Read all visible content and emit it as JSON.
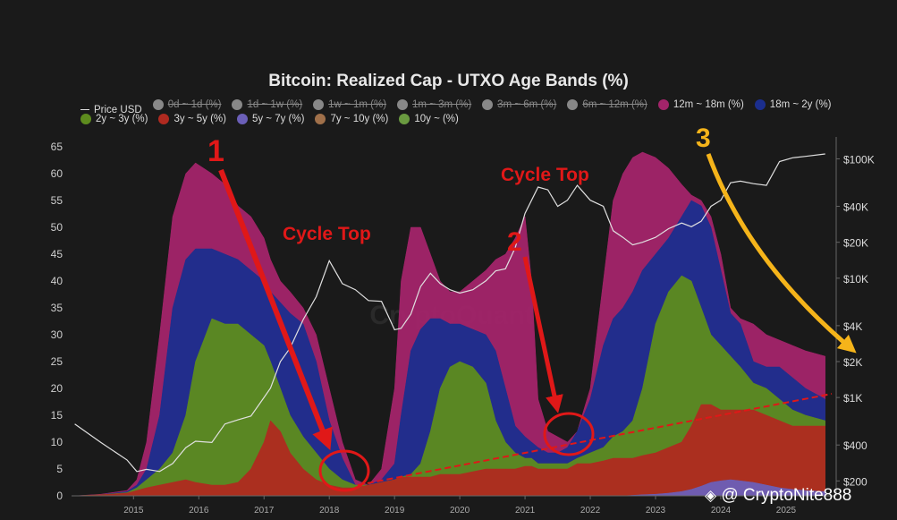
{
  "chart_data": {
    "type": "area",
    "title": "Bitcoin: Realized Cap - UTXO Age Bands (%)",
    "xlabel": "",
    "ylabel": "",
    "x_ticks": [
      "2015",
      "2016",
      "2017",
      "2018",
      "2019",
      "2020",
      "2021",
      "2022",
      "2023",
      "2024",
      "2025"
    ],
    "y_ticks": [
      0,
      5,
      10,
      15,
      20,
      25,
      30,
      35,
      40,
      45,
      50,
      55,
      60,
      65
    ],
    "ylim": [
      0,
      66
    ],
    "y2_ticks": [
      "$200",
      "$400",
      "$1K",
      "$2K",
      "$4K",
      "$10K",
      "$20K",
      "$40K",
      "$100K"
    ],
    "y2_scale": "log",
    "stack_order": [
      "10y ~ (%)",
      "7y ~ 10y (%)",
      "5y ~ 7y (%)",
      "3y ~ 5y (%)",
      "2y ~ 3y (%)",
      "18m ~ 2y (%)",
      "12m ~ 18m (%)"
    ],
    "x": [
      2014.1,
      2014.5,
      2014.9,
      2015.05,
      2015.2,
      2015.4,
      2015.6,
      2015.8,
      2015.95,
      2016.2,
      2016.4,
      2016.6,
      2016.8,
      2017.0,
      2017.1,
      2017.25,
      2017.4,
      2017.6,
      2017.8,
      2018.0,
      2018.2,
      2018.4,
      2018.6,
      2018.8,
      2019.0,
      2019.1,
      2019.25,
      2019.4,
      2019.55,
      2019.7,
      2019.85,
      2020.0,
      2020.2,
      2020.4,
      2020.55,
      2020.7,
      2020.85,
      2021.0,
      2021.1,
      2021.2,
      2021.35,
      2021.5,
      2021.65,
      2021.8,
      2022.0,
      2022.2,
      2022.35,
      2022.5,
      2022.65,
      2022.8,
      2023.0,
      2023.2,
      2023.4,
      2023.55,
      2023.7,
      2023.85,
      2024.0,
      2024.15,
      2024.3,
      2024.5,
      2024.7,
      2024.9,
      2025.1,
      2025.3,
      2025.6
    ],
    "series": [
      {
        "name": "12m ~ 18m (%)",
        "color": "#a3246a",
        "values": [
          0,
          0.3,
          1,
          3,
          10,
          30,
          52,
          60,
          62,
          60,
          58,
          54,
          52,
          48,
          44,
          40,
          38,
          35,
          30,
          20,
          10,
          3,
          2,
          5,
          20,
          40,
          50,
          50,
          45,
          40,
          38,
          38,
          40,
          42,
          44,
          45,
          48,
          52,
          40,
          18,
          12,
          11,
          10,
          12,
          20,
          40,
          55,
          60,
          63,
          64,
          63,
          61,
          58,
          56,
          55,
          52,
          45,
          35,
          33,
          32,
          30,
          29,
          28,
          27,
          26
        ]
      },
      {
        "name": "18m ~ 2y (%)",
        "color": "#1b2e8e",
        "values": [
          0,
          0.2,
          0.8,
          2,
          5,
          15,
          35,
          44,
          46,
          46,
          45,
          44,
          42,
          40,
          38,
          36,
          34,
          32,
          25,
          14,
          7,
          2,
          2,
          3,
          6,
          15,
          27,
          31,
          33,
          33,
          32,
          32,
          31,
          30,
          27,
          20,
          13,
          11,
          10,
          9,
          8,
          8,
          9,
          12,
          18,
          28,
          33,
          35,
          38,
          42,
          45,
          48,
          52,
          55,
          54,
          50,
          42,
          34,
          32,
          25,
          24,
          24,
          22,
          20,
          18
        ]
      },
      {
        "name": "2y ~ 3y (%)",
        "color": "#5e8c1e",
        "values": [
          0,
          0.2,
          0.6,
          1.5,
          3,
          5,
          8,
          15,
          25,
          33,
          32,
          32,
          30,
          28,
          25,
          20,
          15,
          11,
          8,
          5,
          3,
          2,
          2,
          2.5,
          3,
          3.5,
          4,
          6,
          12,
          20,
          24,
          25,
          24,
          21,
          14,
          10,
          8,
          7,
          7,
          6,
          6,
          6,
          6,
          7,
          8,
          9,
          11,
          12,
          14,
          20,
          32,
          38,
          41,
          40,
          35,
          30,
          28,
          26,
          24,
          21,
          20,
          18,
          16,
          15,
          14
        ]
      },
      {
        "name": "3y ~ 5y (%)",
        "color": "#b02a20",
        "values": [
          0,
          0.2,
          0.5,
          1,
          1.5,
          2,
          2.5,
          3,
          2.5,
          2,
          2,
          2.5,
          5,
          10,
          14,
          12,
          8,
          5,
          3,
          2,
          1.5,
          1.5,
          2,
          2.5,
          3,
          3.5,
          3.5,
          3.5,
          3.5,
          4,
          4,
          4,
          4.5,
          5,
          5,
          5,
          5,
          5.5,
          5.5,
          5,
          5,
          5,
          5,
          6,
          6,
          6.5,
          7,
          7,
          7,
          7.5,
          8,
          9,
          10,
          13,
          17,
          17,
          16,
          16,
          16,
          16,
          15,
          14,
          13,
          13,
          13
        ]
      },
      {
        "name": "5y ~ 7y (%)",
        "color": "#6b5fb8",
        "values": [
          0,
          0,
          0,
          0,
          0,
          0,
          0,
          0,
          0,
          0,
          0,
          0,
          0,
          0,
          0,
          0,
          0,
          0,
          0,
          0,
          0,
          0,
          0,
          0,
          0,
          0,
          0,
          0,
          0,
          0,
          0,
          0,
          0,
          0,
          0,
          0,
          0,
          0,
          0,
          0,
          0,
          0,
          0,
          0,
          0,
          0,
          0,
          0,
          0.1,
          0.2,
          0.3,
          0.5,
          0.8,
          1.2,
          1.8,
          2.5,
          2.8,
          3,
          2.8,
          2.5,
          2,
          1.5,
          1.2,
          1,
          0.8
        ]
      },
      {
        "name": "Price USD",
        "color": "#e0e0e0",
        "values": [
          600,
          420,
          300,
          240,
          250,
          240,
          280,
          380,
          430,
          420,
          600,
          650,
          700,
          1000,
          1200,
          2000,
          2600,
          4500,
          7000,
          14000,
          9000,
          8000,
          6500,
          6400,
          3700,
          3800,
          5000,
          8500,
          11000,
          9000,
          8000,
          7500,
          8000,
          9500,
          11500,
          12000,
          18000,
          35000,
          45000,
          58000,
          55000,
          40000,
          45000,
          60000,
          45000,
          40000,
          25000,
          22000,
          19000,
          20000,
          22000,
          26000,
          29000,
          27000,
          30000,
          40000,
          45000,
          63000,
          65000,
          62000,
          60000,
          95000,
          102000,
          105000,
          110000
        ]
      }
    ],
    "annotations": {
      "label_1": "1",
      "label_2": "2",
      "label_3": "3",
      "cycle_top_1": "Cycle Top",
      "cycle_top_2": "Cycle Top"
    },
    "grid": false,
    "legend_position": "top"
  },
  "legend": {
    "items": [
      {
        "label": "Price USD",
        "color": "#dddddd",
        "type": "line",
        "enabled": true
      },
      {
        "label": "0d ~ 1d (%)",
        "color": "#888888",
        "type": "dot",
        "enabled": false
      },
      {
        "label": "1d ~ 1w (%)",
        "color": "#888888",
        "type": "dot",
        "enabled": false
      },
      {
        "label": "1w ~ 1m (%)",
        "color": "#888888",
        "type": "dot",
        "enabled": false
      },
      {
        "label": "1m ~ 3m (%)",
        "color": "#888888",
        "type": "dot",
        "enabled": false
      },
      {
        "label": "3m ~ 6m (%)",
        "color": "#888888",
        "type": "dot",
        "enabled": false
      },
      {
        "label": "6m ~ 12m (%)",
        "color": "#888888",
        "type": "dot",
        "enabled": false
      },
      {
        "label": "12m ~ 18m (%)",
        "color": "#a3246a",
        "type": "dot",
        "enabled": true
      },
      {
        "label": "18m ~ 2y (%)",
        "color": "#1b2e8e",
        "type": "dot",
        "enabled": true
      },
      {
        "label": "2y ~ 3y (%)",
        "color": "#5e8c1e",
        "type": "dot",
        "enabled": true
      },
      {
        "label": "3y ~ 5y (%)",
        "color": "#b02a20",
        "type": "dot",
        "enabled": true
      },
      {
        "label": "5y ~ 7y (%)",
        "color": "#6b5fb8",
        "type": "dot",
        "enabled": true
      },
      {
        "label": "7y ~ 10y (%)",
        "color": "#a0704a",
        "type": "dot",
        "enabled": true
      },
      {
        "label": "10y ~ (%)",
        "color": "#6a9a40",
        "type": "dot",
        "enabled": true
      }
    ]
  },
  "watermark": {
    "text": "@ CryptoNite888",
    "bg_text": "CryptoQuant"
  }
}
